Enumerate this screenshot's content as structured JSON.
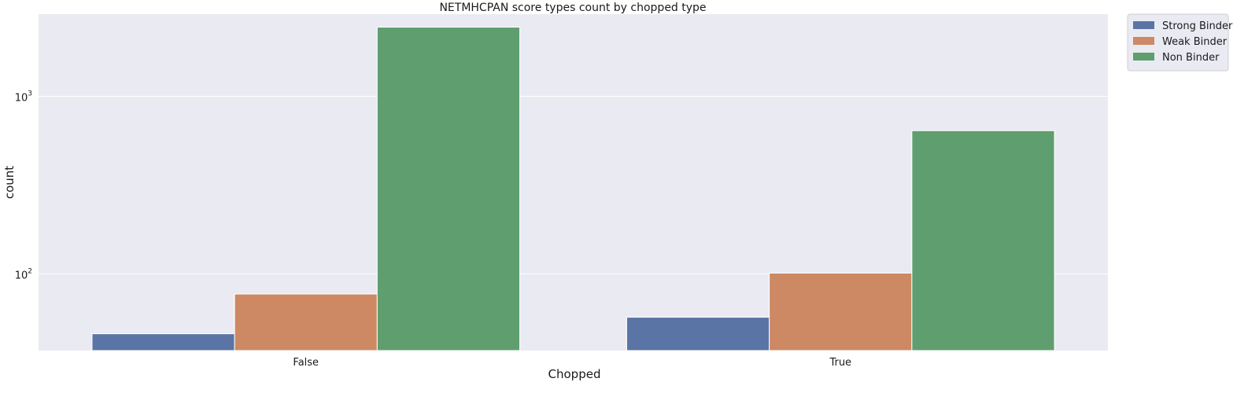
{
  "chart_data": {
    "type": "bar",
    "title": "NETMHCPAN score types count by chopped type",
    "xlabel": "Chopped",
    "ylabel": "count",
    "yscale": "log",
    "ylim": [
      37,
      2900
    ],
    "yticks": [
      {
        "value": 100,
        "base": "10",
        "exp": "2"
      },
      {
        "value": 1000,
        "base": "10",
        "exp": "3"
      }
    ],
    "grid": true,
    "legend_position": "outside-top-right",
    "categories": [
      "False",
      "True"
    ],
    "series": [
      {
        "name": "Strong Binder",
        "color": "#5a74a6",
        "values": [
          46,
          57
        ]
      },
      {
        "name": "Weak Binder",
        "color": "#cc8963",
        "values": [
          77,
          101
        ]
      },
      {
        "name": "Non Binder",
        "color": "#5f9e6e",
        "values": [
          2450,
          640
        ]
      }
    ]
  }
}
